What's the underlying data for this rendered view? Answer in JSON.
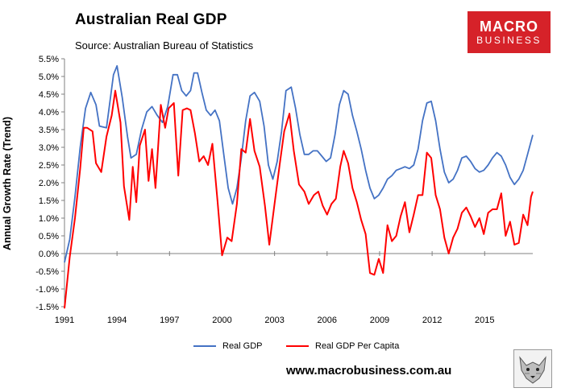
{
  "header": {
    "title": "Australian Real GDP",
    "source": "Source: Australian Bureau of Statistics"
  },
  "logo": {
    "line1": "MACRO",
    "line2": "BUSINESS"
  },
  "website": "www.macrobusiness.com.au",
  "colors": {
    "gdp": "#4472c4",
    "per_capita": "#ff0000",
    "logo": "#d62229"
  },
  "chart_data": {
    "type": "line",
    "title": "Australian Real GDP",
    "xlabel": "",
    "ylabel": "Annual Growth Rate (Trend)",
    "ylim": [
      -1.5,
      5.5
    ],
    "yticks": [
      -1.5,
      -1.0,
      -0.5,
      0.0,
      0.5,
      1.0,
      1.5,
      2.0,
      2.5,
      3.0,
      3.5,
      4.0,
      4.5,
      5.0,
      5.5
    ],
    "ytick_labels": [
      "-1.5%",
      "-1.0%",
      "-0.5%",
      "0.0%",
      "0.5%",
      "1.0%",
      "1.5%",
      "2.0%",
      "2.5%",
      "3.0%",
      "3.5%",
      "4.0%",
      "4.5%",
      "5.0%",
      "5.5%"
    ],
    "xlim": [
      1991,
      2017.75
    ],
    "xticks": [
      1991,
      1994,
      1997,
      2000,
      2003,
      2006,
      2009,
      2012,
      2015
    ],
    "xtick_labels": [
      "1991",
      "1994",
      "1997",
      "2000",
      "2003",
      "2006",
      "2009",
      "2012",
      "2015"
    ],
    "grid": false,
    "legend": "bottom",
    "series": [
      {
        "name": "Real GDP",
        "color": "#4472c4",
        "points": [
          [
            1991.0,
            -0.25
          ],
          [
            1991.3,
            0.4
          ],
          [
            1991.6,
            1.6
          ],
          [
            1991.9,
            3.0
          ],
          [
            1992.2,
            4.1
          ],
          [
            1992.5,
            4.55
          ],
          [
            1992.8,
            4.2
          ],
          [
            1993.0,
            3.6
          ],
          [
            1993.4,
            3.55
          ],
          [
            1993.8,
            5.05
          ],
          [
            1994.0,
            5.3
          ],
          [
            1994.3,
            4.4
          ],
          [
            1994.6,
            3.3
          ],
          [
            1994.8,
            2.7
          ],
          [
            1995.1,
            2.8
          ],
          [
            1995.4,
            3.5
          ],
          [
            1995.7,
            4.0
          ],
          [
            1996.0,
            4.15
          ],
          [
            1996.3,
            3.9
          ],
          [
            1996.6,
            3.7
          ],
          [
            1996.9,
            4.15
          ],
          [
            1997.2,
            5.05
          ],
          [
            1997.45,
            5.05
          ],
          [
            1997.7,
            4.6
          ],
          [
            1997.95,
            4.45
          ],
          [
            1998.2,
            4.6
          ],
          [
            1998.4,
            5.1
          ],
          [
            1998.6,
            5.1
          ],
          [
            1998.85,
            4.55
          ],
          [
            1999.1,
            4.05
          ],
          [
            1999.35,
            3.9
          ],
          [
            1999.6,
            4.05
          ],
          [
            1999.85,
            3.75
          ],
          [
            2000.1,
            2.8
          ],
          [
            2000.35,
            1.85
          ],
          [
            2000.6,
            1.4
          ],
          [
            2000.85,
            1.85
          ],
          [
            2001.1,
            2.7
          ],
          [
            2001.35,
            3.75
          ],
          [
            2001.6,
            4.45
          ],
          [
            2001.85,
            4.55
          ],
          [
            2002.15,
            4.3
          ],
          [
            2002.4,
            3.6
          ],
          [
            2002.65,
            2.5
          ],
          [
            2002.9,
            2.1
          ],
          [
            2003.15,
            2.6
          ],
          [
            2003.4,
            3.45
          ],
          [
            2003.65,
            4.6
          ],
          [
            2003.95,
            4.7
          ],
          [
            2004.2,
            4.1
          ],
          [
            2004.45,
            3.35
          ],
          [
            2004.7,
            2.8
          ],
          [
            2004.95,
            2.8
          ],
          [
            2005.2,
            2.9
          ],
          [
            2005.45,
            2.9
          ],
          [
            2005.7,
            2.75
          ],
          [
            2005.95,
            2.6
          ],
          [
            2006.2,
            2.7
          ],
          [
            2006.45,
            3.35
          ],
          [
            2006.7,
            4.2
          ],
          [
            2006.95,
            4.6
          ],
          [
            2007.2,
            4.5
          ],
          [
            2007.45,
            3.9
          ],
          [
            2007.7,
            3.45
          ],
          [
            2007.95,
            2.95
          ],
          [
            2008.2,
            2.35
          ],
          [
            2008.45,
            1.85
          ],
          [
            2008.7,
            1.55
          ],
          [
            2008.95,
            1.65
          ],
          [
            2009.2,
            1.85
          ],
          [
            2009.45,
            2.1
          ],
          [
            2009.7,
            2.2
          ],
          [
            2009.95,
            2.35
          ],
          [
            2010.2,
            2.4
          ],
          [
            2010.45,
            2.45
          ],
          [
            2010.7,
            2.4
          ],
          [
            2010.95,
            2.5
          ],
          [
            2011.2,
            2.95
          ],
          [
            2011.45,
            3.75
          ],
          [
            2011.7,
            4.25
          ],
          [
            2011.95,
            4.3
          ],
          [
            2012.2,
            3.75
          ],
          [
            2012.45,
            2.95
          ],
          [
            2012.7,
            2.3
          ],
          [
            2012.95,
            2.0
          ],
          [
            2013.2,
            2.1
          ],
          [
            2013.45,
            2.35
          ],
          [
            2013.7,
            2.7
          ],
          [
            2013.95,
            2.75
          ],
          [
            2014.2,
            2.6
          ],
          [
            2014.45,
            2.4
          ],
          [
            2014.7,
            2.3
          ],
          [
            2014.95,
            2.35
          ],
          [
            2015.2,
            2.5
          ],
          [
            2015.45,
            2.7
          ],
          [
            2015.7,
            2.85
          ],
          [
            2015.95,
            2.75
          ],
          [
            2016.2,
            2.5
          ],
          [
            2016.45,
            2.15
          ],
          [
            2016.7,
            1.95
          ],
          [
            2016.95,
            2.1
          ],
          [
            2017.2,
            2.35
          ],
          [
            2017.45,
            2.8
          ],
          [
            2017.75,
            3.35
          ]
        ]
      },
      {
        "name": "Real GDP Per Capita",
        "color": "#ff0000",
        "points": [
          [
            1991.0,
            -1.55
          ],
          [
            1991.3,
            -0.1
          ],
          [
            1991.6,
            1.0
          ],
          [
            1991.9,
            2.4
          ],
          [
            1992.1,
            3.55
          ],
          [
            1992.3,
            3.55
          ],
          [
            1992.6,
            3.45
          ],
          [
            1992.8,
            2.55
          ],
          [
            1993.1,
            2.3
          ],
          [
            1993.4,
            3.3
          ],
          [
            1993.7,
            3.9
          ],
          [
            1993.9,
            4.6
          ],
          [
            1994.2,
            3.7
          ],
          [
            1994.4,
            1.9
          ],
          [
            1994.7,
            0.95
          ],
          [
            1994.9,
            2.45
          ],
          [
            1995.1,
            1.45
          ],
          [
            1995.3,
            3.05
          ],
          [
            1995.6,
            3.5
          ],
          [
            1995.8,
            2.05
          ],
          [
            1996.0,
            2.95
          ],
          [
            1996.2,
            1.85
          ],
          [
            1996.5,
            4.2
          ],
          [
            1996.75,
            3.55
          ],
          [
            1996.95,
            4.1
          ],
          [
            1997.25,
            4.25
          ],
          [
            1997.5,
            2.2
          ],
          [
            1997.75,
            4.05
          ],
          [
            1998.0,
            4.1
          ],
          [
            1998.2,
            4.05
          ],
          [
            1998.45,
            3.4
          ],
          [
            1998.7,
            2.6
          ],
          [
            1998.95,
            2.75
          ],
          [
            1999.2,
            2.5
          ],
          [
            1999.45,
            3.1
          ],
          [
            1999.75,
            1.45
          ],
          [
            2000.0,
            -0.05
          ],
          [
            2000.3,
            0.45
          ],
          [
            2000.55,
            0.35
          ],
          [
            2000.85,
            1.4
          ],
          [
            2001.1,
            2.95
          ],
          [
            2001.35,
            2.85
          ],
          [
            2001.6,
            3.8
          ],
          [
            2001.85,
            2.9
          ],
          [
            2002.15,
            2.45
          ],
          [
            2002.45,
            1.35
          ],
          [
            2002.7,
            0.25
          ],
          [
            2003.0,
            1.4
          ],
          [
            2003.3,
            2.55
          ],
          [
            2003.55,
            3.45
          ],
          [
            2003.85,
            3.95
          ],
          [
            2004.1,
            2.9
          ],
          [
            2004.4,
            1.95
          ],
          [
            2004.7,
            1.75
          ],
          [
            2004.95,
            1.4
          ],
          [
            2005.25,
            1.65
          ],
          [
            2005.5,
            1.75
          ],
          [
            2005.75,
            1.35
          ],
          [
            2006.0,
            1.1
          ],
          [
            2006.25,
            1.4
          ],
          [
            2006.5,
            1.55
          ],
          [
            2006.75,
            2.45
          ],
          [
            2006.95,
            2.9
          ],
          [
            2007.2,
            2.55
          ],
          [
            2007.45,
            1.85
          ],
          [
            2007.7,
            1.45
          ],
          [
            2007.95,
            0.95
          ],
          [
            2008.2,
            0.55
          ],
          [
            2008.45,
            -0.55
          ],
          [
            2008.7,
            -0.6
          ],
          [
            2008.95,
            -0.15
          ],
          [
            2009.2,
            -0.55
          ],
          [
            2009.45,
            0.8
          ],
          [
            2009.7,
            0.35
          ],
          [
            2009.95,
            0.5
          ],
          [
            2010.2,
            1.05
          ],
          [
            2010.45,
            1.45
          ],
          [
            2010.7,
            0.6
          ],
          [
            2010.95,
            1.1
          ],
          [
            2011.2,
            1.65
          ],
          [
            2011.45,
            1.65
          ],
          [
            2011.7,
            2.85
          ],
          [
            2011.95,
            2.7
          ],
          [
            2012.2,
            1.65
          ],
          [
            2012.45,
            1.25
          ],
          [
            2012.7,
            0.45
          ],
          [
            2012.95,
            0.0
          ],
          [
            2013.2,
            0.45
          ],
          [
            2013.45,
            0.7
          ],
          [
            2013.7,
            1.15
          ],
          [
            2013.95,
            1.3
          ],
          [
            2014.2,
            1.05
          ],
          [
            2014.45,
            0.75
          ],
          [
            2014.7,
            1.0
          ],
          [
            2014.95,
            0.55
          ],
          [
            2015.2,
            1.15
          ],
          [
            2015.45,
            1.25
          ],
          [
            2015.7,
            1.25
          ],
          [
            2015.95,
            1.7
          ],
          [
            2016.2,
            0.5
          ],
          [
            2016.45,
            0.9
          ],
          [
            2016.7,
            0.25
          ],
          [
            2016.95,
            0.3
          ],
          [
            2017.2,
            1.1
          ],
          [
            2017.45,
            0.8
          ],
          [
            2017.65,
            1.6
          ],
          [
            2017.75,
            1.75
          ]
        ]
      }
    ]
  }
}
